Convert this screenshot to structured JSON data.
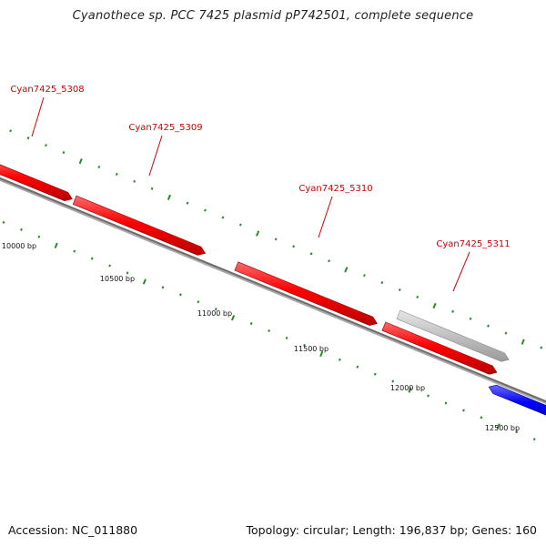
{
  "title": "Cyanothece sp. PCC 7425 plasmid pP742501, complete sequence",
  "footer": {
    "accession": "Accession: NC_011880",
    "summary": "Topology: circular; Length: 196,837 bp; Genes: 160"
  },
  "colors": {
    "forward_gene": "#ff0000",
    "reverse_gene": "#0000ff",
    "other_feature": "#c0c0c0",
    "backbone": "#808080",
    "tick": "#2a8a2a",
    "label": "#d00000"
  },
  "genes": [
    {
      "name": "Cyan7425_5308",
      "strand": "+",
      "track": "forward"
    },
    {
      "name": "Cyan7425_5309",
      "strand": "+",
      "track": "forward"
    },
    {
      "name": "Cyan7425_5310",
      "strand": "+",
      "track": "forward"
    },
    {
      "name": "",
      "strand": "+",
      "track": "forward"
    },
    {
      "name": "Cyan7425_5311",
      "strand": "+",
      "track": "other"
    },
    {
      "name": "",
      "strand": "-",
      "track": "reverse"
    }
  ],
  "scale_labels": [
    "10000 bp",
    "10500 bp",
    "11000 bp",
    "11500 bp",
    "12000 bp",
    "12500 bp"
  ]
}
